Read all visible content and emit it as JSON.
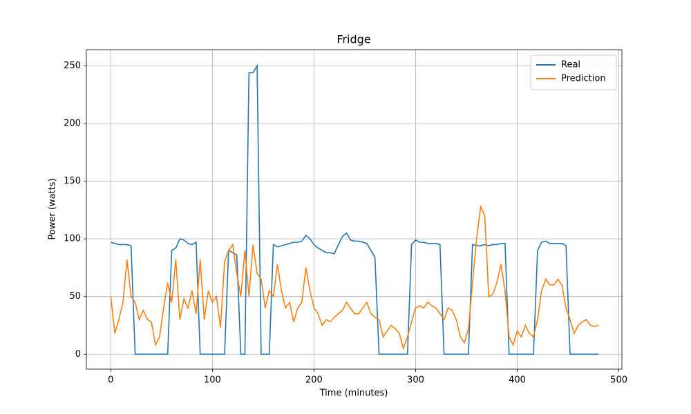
{
  "chart_data": {
    "type": "line",
    "title": "Fridge",
    "x_label": "Time (minutes)",
    "y_label": "Power (watts)",
    "x": [
      0,
      4,
      8,
      12,
      16,
      20,
      24,
      28,
      32,
      36,
      40,
      44,
      48,
      52,
      56,
      60,
      64,
      68,
      72,
      76,
      80,
      84,
      88,
      92,
      96,
      100,
      104,
      108,
      112,
      116,
      120,
      124,
      128,
      132,
      136,
      140,
      144,
      148,
      152,
      156,
      160,
      164,
      168,
      172,
      176,
      180,
      184,
      188,
      192,
      196,
      200,
      204,
      208,
      212,
      216,
      220,
      224,
      228,
      232,
      236,
      240,
      244,
      248,
      252,
      256,
      260,
      264,
      268,
      272,
      276,
      280,
      284,
      288,
      292,
      296,
      300,
      304,
      308,
      312,
      316,
      320,
      324,
      328,
      332,
      336,
      340,
      344,
      348,
      352,
      356,
      360,
      364,
      368,
      372,
      376,
      380,
      384,
      388,
      392,
      396,
      400,
      404,
      408,
      412,
      416,
      420,
      424,
      428,
      432,
      436,
      440,
      444,
      448,
      452,
      456,
      460,
      464,
      468,
      472,
      476,
      480
    ],
    "series": [
      {
        "name": "Real",
        "color": "#1f77b4",
        "values": [
          97,
          96,
          95,
          95,
          95,
          94,
          0,
          0,
          0,
          0,
          0,
          0,
          0,
          0,
          0,
          90,
          92,
          100,
          99,
          96,
          95,
          97,
          0,
          0,
          0,
          0,
          0,
          0,
          0,
          90,
          88,
          86,
          0,
          0,
          244,
          244,
          250,
          0,
          0,
          0,
          95,
          93,
          94,
          95,
          96,
          97,
          97,
          98,
          103,
          100,
          95,
          92,
          90,
          88,
          88,
          87,
          95,
          102,
          105,
          99,
          98,
          98,
          97,
          96,
          90,
          84,
          0,
          0,
          0,
          0,
          0,
          0,
          0,
          0,
          95,
          99,
          97,
          97,
          96,
          96,
          96,
          95,
          0,
          0,
          0,
          0,
          0,
          0,
          0,
          95,
          94,
          94,
          95,
          94,
          95,
          95,
          96,
          96,
          0,
          0,
          0,
          0,
          0,
          0,
          0,
          90,
          97,
          98,
          96,
          96,
          96,
          96,
          94,
          0,
          0,
          0,
          0,
          0,
          0,
          0,
          0
        ]
      },
      {
        "name": "Prediction",
        "color": "#ff7f0e",
        "values": [
          50,
          18,
          30,
          45,
          82,
          50,
          45,
          30,
          38,
          30,
          28,
          8,
          15,
          40,
          62,
          45,
          82,
          30,
          48,
          40,
          55,
          35,
          82,
          30,
          55,
          45,
          50,
          23,
          80,
          90,
          95,
          70,
          50,
          90,
          50,
          95,
          70,
          65,
          40,
          55,
          50,
          78,
          55,
          40,
          45,
          28,
          40,
          45,
          75,
          55,
          40,
          35,
          25,
          30,
          28,
          32,
          35,
          38,
          45,
          40,
          35,
          35,
          40,
          45,
          35,
          32,
          30,
          15,
          20,
          25,
          22,
          18,
          5,
          15,
          28,
          40,
          42,
          40,
          45,
          42,
          40,
          35,
          30,
          40,
          38,
          30,
          15,
          10,
          22,
          62,
          100,
          128,
          120,
          50,
          52,
          62,
          78,
          55,
          15,
          8,
          20,
          15,
          25,
          18,
          15,
          30,
          55,
          65,
          60,
          60,
          65,
          60,
          40,
          30,
          18,
          25,
          28,
          30,
          25,
          24,
          25
        ]
      }
    ],
    "xlim": [
      -24,
      503
    ],
    "ylim": [
      -13,
      264
    ],
    "xticks": [
      0,
      100,
      200,
      300,
      400,
      500
    ],
    "yticks": [
      0,
      50,
      100,
      150,
      200,
      250
    ],
    "grid": true,
    "legend": "upper right"
  }
}
